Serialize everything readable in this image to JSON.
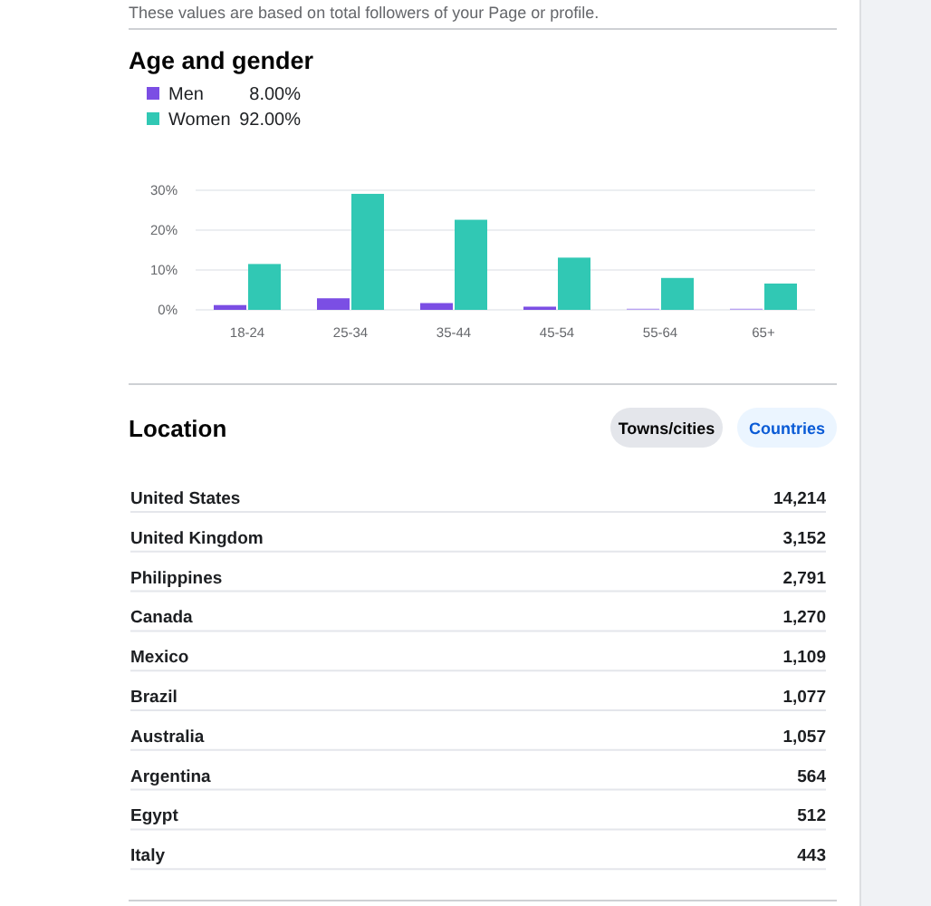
{
  "chart_data": [
    {
      "type": "bar",
      "title": "Age and gender",
      "subtitle": "These values are based on total followers of your Page or profile.",
      "categories": [
        "18-24",
        "25-34",
        "35-44",
        "45-54",
        "55-64",
        "65+"
      ],
      "series": [
        {
          "name": "Men",
          "color": "#7b4ee4",
          "colors": [
            "#7b4ee4",
            "#7b4ee4",
            "#7b4ee4",
            "#7b4ee4",
            "#b9a3f2",
            "#b9a3f2"
          ],
          "values": [
            1.2,
            2.9,
            1.7,
            0.8,
            0.3,
            0.3
          ]
        },
        {
          "name": "Women",
          "color": "#31c8b4",
          "values": [
            11.5,
            29.1,
            22.6,
            13.1,
            8.0,
            6.6
          ]
        }
      ],
      "annotations": [
        "8.00%",
        "92.00%"
      ],
      "ylim": [
        0,
        30
      ],
      "yticks": [
        {
          "value": 0,
          "label": "0%"
        },
        {
          "value": 10,
          "label": "10%"
        },
        {
          "value": 20,
          "label": "20%"
        },
        {
          "value": 30,
          "label": "30%"
        }
      ],
      "grid": "y",
      "legend": "top left"
    },
    {
      "type": "other",
      "title": "Location",
      "annotations": [
        "Towns/cities",
        "Countries"
      ],
      "categories": [
        "United States",
        "United Kingdom",
        "Philippines",
        "Canada",
        "Mexico",
        "Brazil",
        "Australia",
        "Argentina",
        "Egypt",
        "Italy"
      ],
      "value_labels": [
        "14,214",
        "3,152",
        "2,791",
        "1,270",
        "1,109",
        "1,077",
        "1,057",
        "564",
        "512",
        "443"
      ]
    }
  ]
}
